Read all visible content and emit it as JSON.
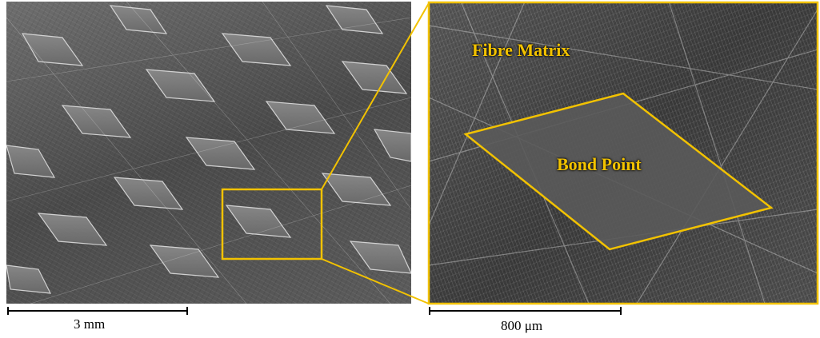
{
  "labels": {
    "fibre_matrix": "Fibre Matrix",
    "bond_point": "Bond Point"
  },
  "scale_bars": {
    "left": "3 mm",
    "right": "800 μm"
  },
  "colors": {
    "highlight": "#f2c200",
    "scale_bar": "#000000"
  }
}
